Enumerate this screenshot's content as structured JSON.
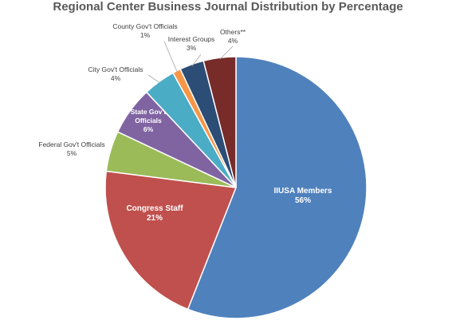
{
  "chart_data": {
    "type": "pie",
    "title": "Regional Center Business Journal Distribution by Percentage",
    "slices": [
      {
        "name": "IIUSA Members",
        "label_lines": [
          "IIUSA Members"
        ],
        "value": 56,
        "value_label": "56%",
        "color": "#4F81BD",
        "label_position": "inside"
      },
      {
        "name": "Congress Staff",
        "label_lines": [
          "Congress Staff"
        ],
        "value": 21,
        "value_label": "21%",
        "color": "#C0504D",
        "label_position": "inside"
      },
      {
        "name": "Federal Gov't Officials",
        "label_lines": [
          "Federal Gov't Officials"
        ],
        "value": 5,
        "value_label": "5%",
        "color": "#9BBB59",
        "label_position": "outside"
      },
      {
        "name": "State Gov't Officials",
        "label_lines": [
          "State Gov't",
          "Officials"
        ],
        "value": 6,
        "value_label": "6%",
        "color": "#8064A2",
        "label_position": "inside"
      },
      {
        "name": "City Gov't Officials",
        "label_lines": [
          "City Gov't Officials"
        ],
        "value": 4,
        "value_label": "4%",
        "color": "#4BACC6",
        "label_position": "outside"
      },
      {
        "name": "County Gov't Officials",
        "label_lines": [
          "County Gov't Officials"
        ],
        "value": 1,
        "value_label": "1%",
        "color": "#F79646",
        "label_position": "outside"
      },
      {
        "name": "Interest Groups",
        "label_lines": [
          "Interest Groups"
        ],
        "value": 3,
        "value_label": "3%",
        "color": "#2C4D75",
        "label_position": "outside"
      },
      {
        "name": "Others**",
        "label_lines": [
          "Others**"
        ],
        "value": 4,
        "value_label": "4%",
        "color": "#772C2A",
        "label_position": "outside"
      }
    ]
  }
}
